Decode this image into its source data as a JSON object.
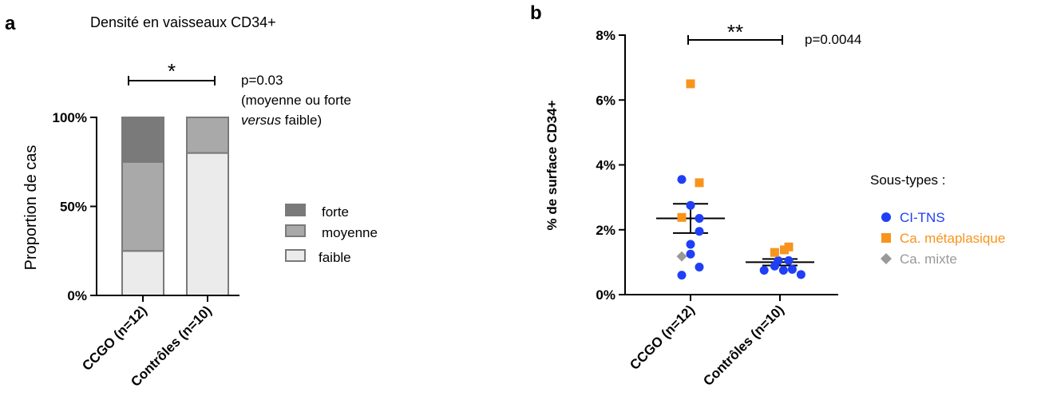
{
  "chart_data": [
    {
      "panel": "a",
      "type": "bar",
      "stacked": true,
      "title": "Densité en vaisseaux CD34+",
      "ylabel": "Proportion de cas",
      "xlabel": "",
      "ylim": [
        0,
        100
      ],
      "yticks": [
        "0%",
        "50%",
        "100%"
      ],
      "categories": [
        "CCGO (n=12)",
        "Contrôles (n=10)"
      ],
      "series": [
        {
          "name": "faible",
          "values": [
            25,
            80
          ],
          "color": "#ebebeb"
        },
        {
          "name": "moyenne",
          "values": [
            50,
            20
          ],
          "color": "#a9a9a9"
        },
        {
          "name": "forte",
          "values": [
            25,
            0
          ],
          "color": "#7a7a7a"
        }
      ],
      "legend_order": [
        "forte",
        "moyenne",
        "faible"
      ],
      "legend_position": "right",
      "significance": "*",
      "annotation": {
        "line1": "p=0.03",
        "line2": "(moyenne ou forte",
        "line3_italic": "versus",
        "line3_rest": " faible)"
      }
    },
    {
      "panel": "b",
      "type": "scatter",
      "title": "",
      "ylabel": "% de surface CD34+",
      "xlabel": "",
      "ylim": [
        0,
        8
      ],
      "yticks": [
        "0%",
        "2%",
        "4%",
        "6%",
        "8%"
      ],
      "categories": [
        "CCGO (n=12)",
        "Contrôles (n=10)"
      ],
      "legend_title": "Sous-types :",
      "legend_position": "right",
      "series": [
        {
          "name": "CI-TNS",
          "marker": "circle",
          "color": "#1f3ff5",
          "points": [
            {
              "group": 0,
              "offset": -0.1,
              "y": 3.55
            },
            {
              "group": 0,
              "offset": 0,
              "y": 2.75
            },
            {
              "group": 0,
              "offset": 0.1,
              "y": 2.35
            },
            {
              "group": 0,
              "offset": 0.1,
              "y": 1.95
            },
            {
              "group": 0,
              "offset": 0,
              "y": 1.55
            },
            {
              "group": 0,
              "offset": 0,
              "y": 1.25
            },
            {
              "group": 0,
              "offset": 0.1,
              "y": 0.85
            },
            {
              "group": 0,
              "offset": -0.1,
              "y": 0.6
            },
            {
              "group": 1,
              "offset": -0.18,
              "y": 0.75
            },
            {
              "group": 1,
              "offset": -0.06,
              "y": 0.88
            },
            {
              "group": 1,
              "offset": 0.04,
              "y": 0.75
            },
            {
              "group": 1,
              "offset": 0.1,
              "y": 1.05
            },
            {
              "group": 1,
              "offset": 0.14,
              "y": 0.78
            },
            {
              "group": 1,
              "offset": 0.24,
              "y": 0.62
            },
            {
              "group": 1,
              "offset": -0.02,
              "y": 1.05
            }
          ]
        },
        {
          "name": "Ca. métaplasique",
          "marker": "square",
          "color": "#f7941d",
          "points": [
            {
              "group": 0,
              "offset": 0,
              "y": 6.5
            },
            {
              "group": 0,
              "offset": 0.1,
              "y": 3.45
            },
            {
              "group": 0,
              "offset": -0.1,
              "y": 2.38
            },
            {
              "group": 1,
              "offset": -0.06,
              "y": 1.3
            },
            {
              "group": 1,
              "offset": 0.1,
              "y": 1.47
            },
            {
              "group": 1,
              "offset": 0.05,
              "y": 1.38
            }
          ]
        },
        {
          "name": "Ca. mixte",
          "marker": "diamond",
          "color": "#999999",
          "points": [
            {
              "group": 0,
              "offset": -0.1,
              "y": 1.18
            }
          ]
        }
      ],
      "mean_sem": [
        {
          "group": 0,
          "mean": 2.35,
          "sem": 0.45
        },
        {
          "group": 1,
          "mean": 1.0,
          "sem": 0.1
        }
      ],
      "significance": "**",
      "annotation": {
        "line1": "p=0.0044"
      }
    }
  ]
}
